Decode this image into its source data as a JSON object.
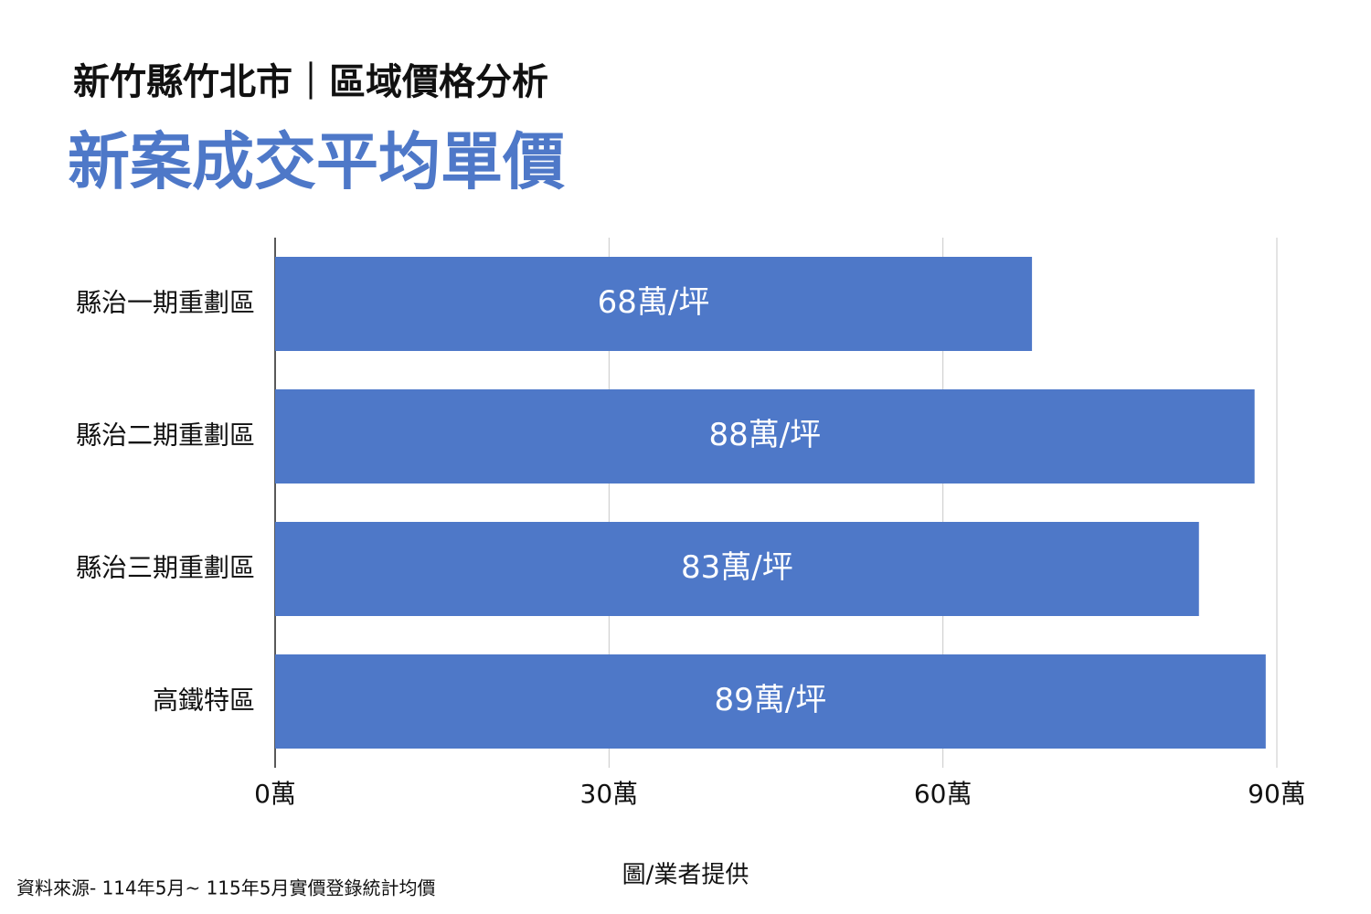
{
  "chart_data": {
    "type": "bar",
    "orientation": "horizontal",
    "title": "新竹縣竹北市｜區域價格分析",
    "subtitle": "新案成交平均單價",
    "categories": [
      "縣治一期重劃區",
      "縣治二期重劃區",
      "縣治三期重劃區",
      "高鐵特區"
    ],
    "values": [
      68,
      88,
      83,
      89
    ],
    "value_labels": [
      "68萬/坪",
      "88萬/坪",
      "83萬/坪",
      "89萬/坪"
    ],
    "color": "#4e78c8",
    "xlim": [
      0,
      90
    ],
    "xticks": [
      {
        "value": 0,
        "label": "0萬"
      },
      {
        "value": 30,
        "label": "30萬"
      },
      {
        "value": 60,
        "label": "60萬"
      },
      {
        "value": 90,
        "label": "90萬"
      }
    ],
    "grid": true,
    "source": "資料來源- 114年5月~ 115年5月實價登錄統計均價",
    "credit": "圖/業者提供"
  }
}
